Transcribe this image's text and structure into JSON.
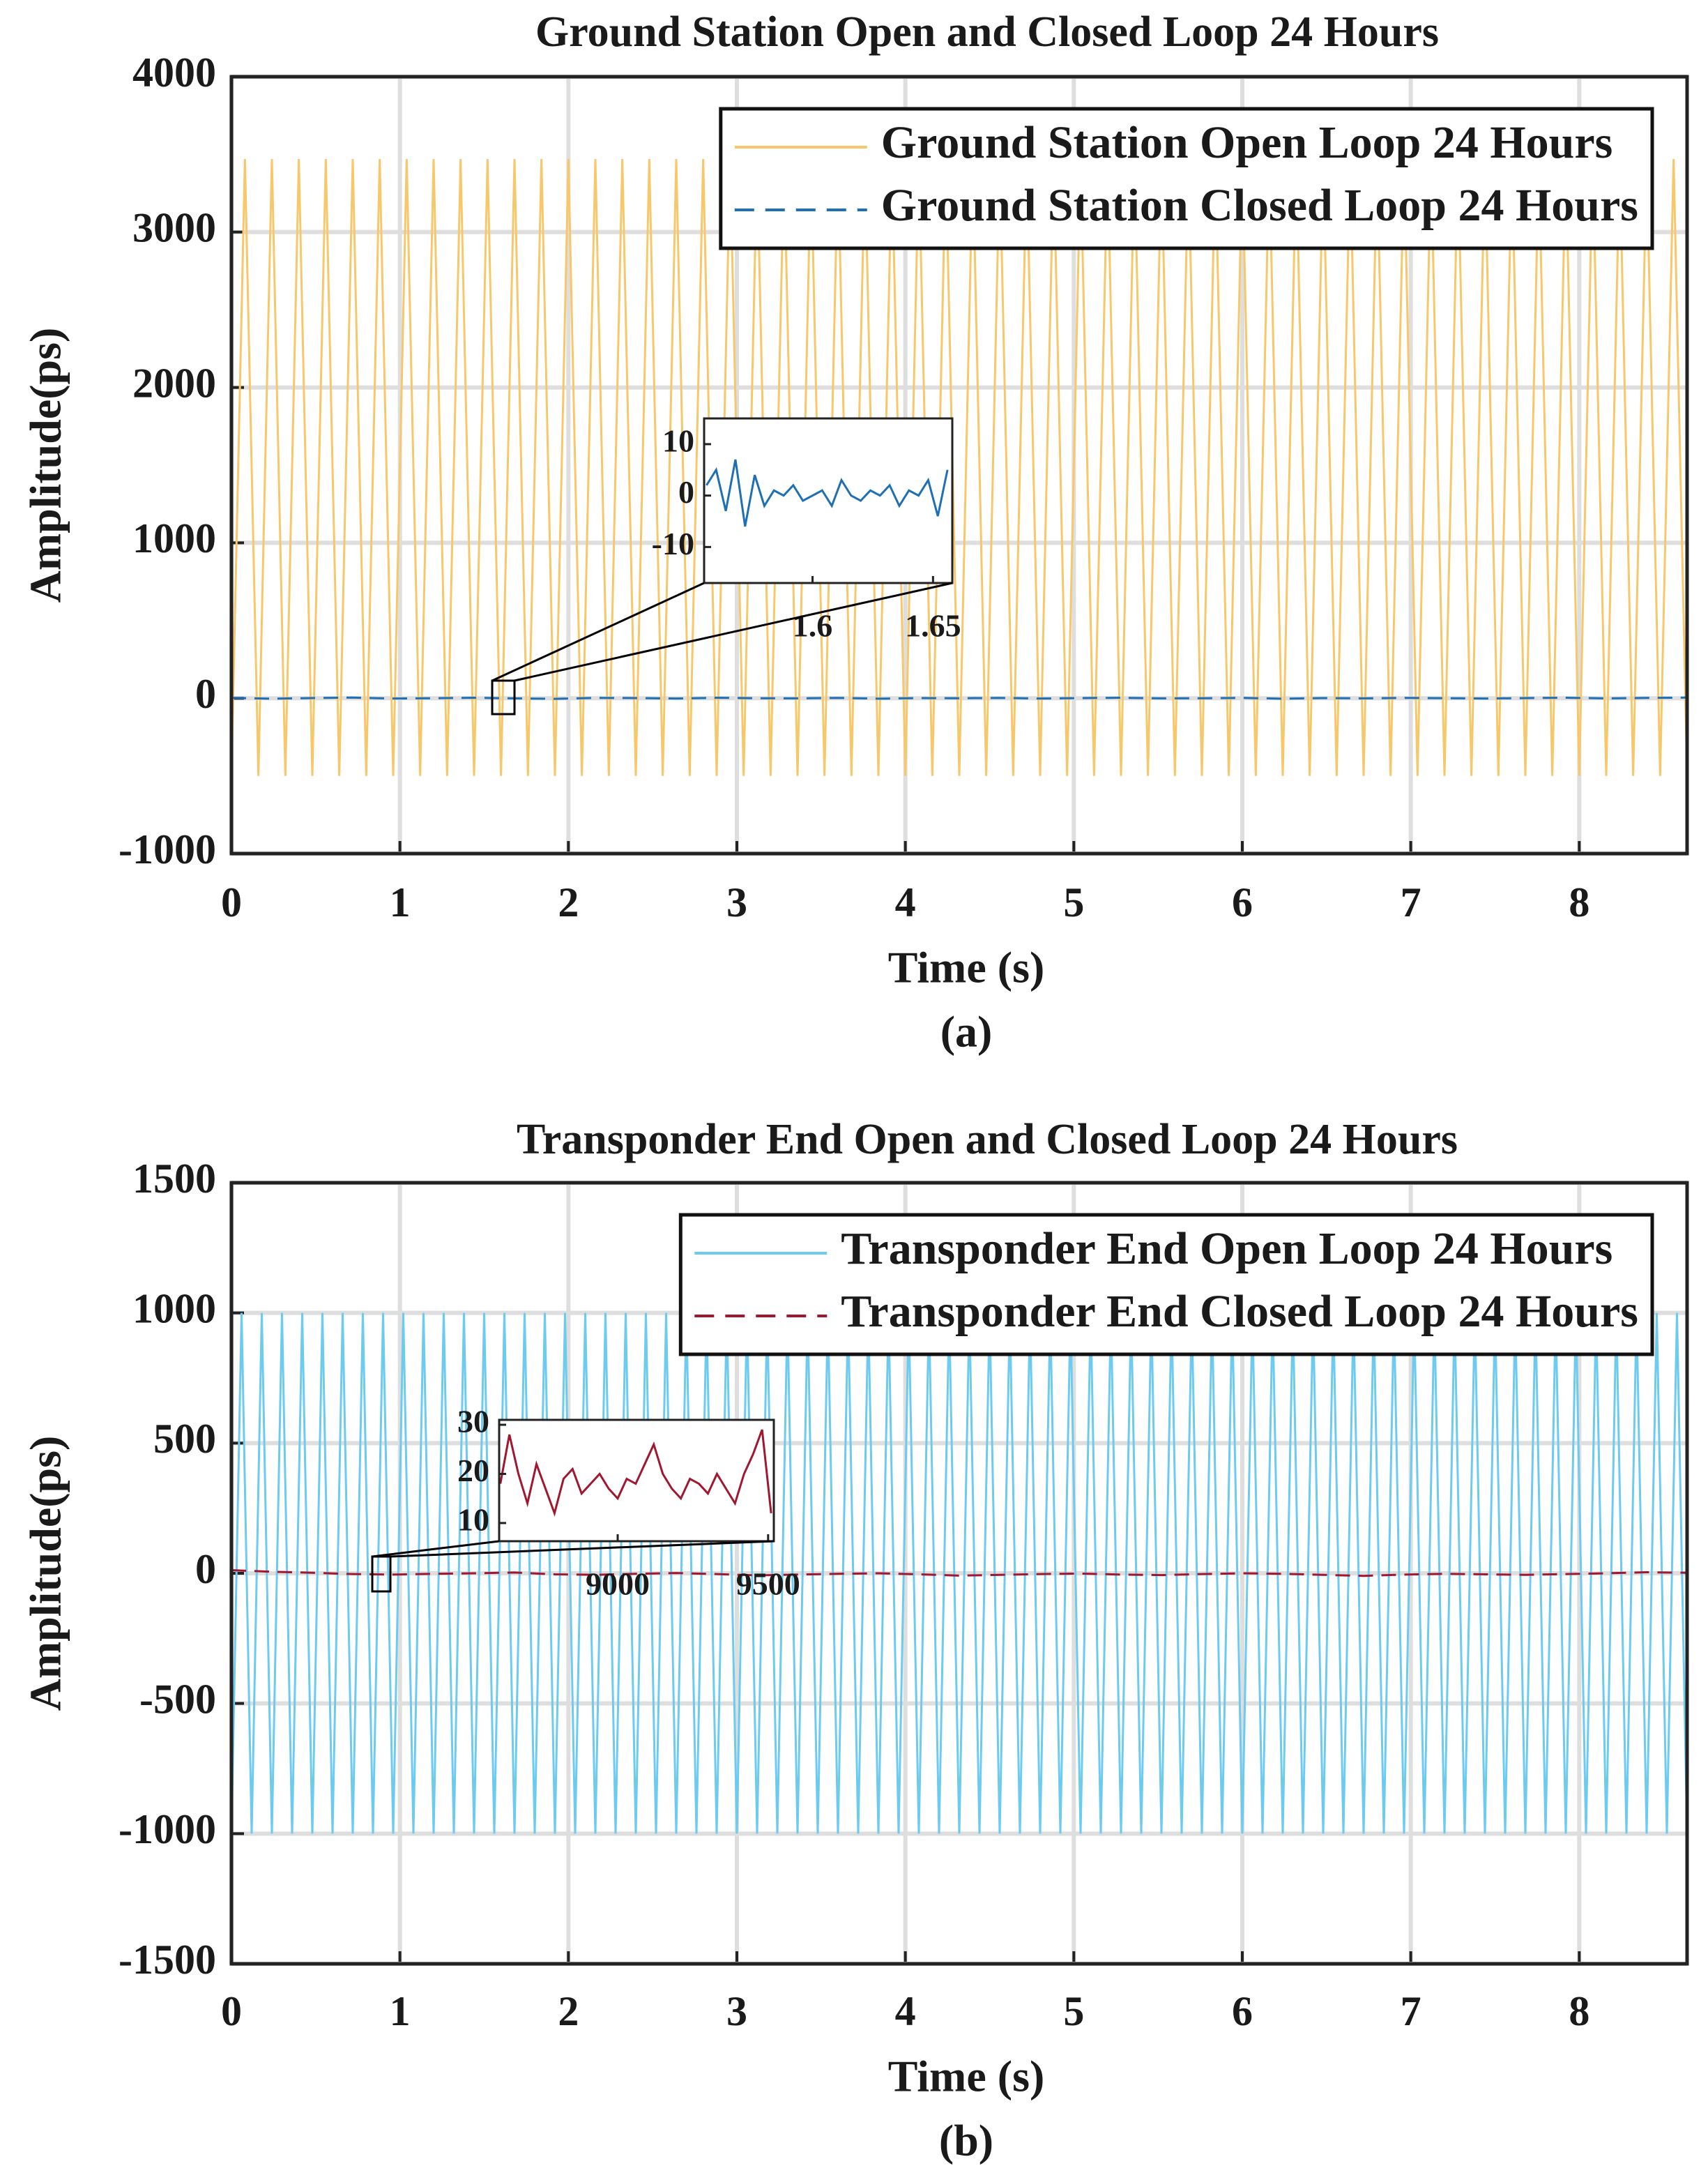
{
  "chart_data": [
    {
      "type": "line",
      "title": "Ground Station Open and Closed Loop 24 Hours",
      "x_label": "Time (s)",
      "y_label": "Amplitude(ps)",
      "caption": "(a)",
      "xlim": [
        0,
        8.64
      ],
      "ylim": [
        -1000,
        4000
      ],
      "xticks": [
        0,
        1,
        2,
        3,
        4,
        5,
        6,
        7,
        8
      ],
      "yticks": [
        -1000,
        0,
        1000,
        2000,
        3000,
        4000
      ],
      "grid": true,
      "legend": "upper right",
      "series": [
        {
          "name": "Ground Station Open Loop 24 Hours",
          "color": "#f7c86b",
          "style": "solid",
          "x": [
            0,
            0.08,
            0.16,
            0.24,
            0.32,
            0.4,
            0.48,
            0.56,
            0.64,
            0.72,
            0.8,
            0.88,
            0.96,
            1.04,
            1.12,
            1.2,
            1.28,
            1.36,
            1.44,
            1.52,
            1.6,
            1.68,
            1.76,
            1.84,
            1.92,
            2,
            2.08,
            2.16,
            2.24,
            2.32,
            2.4,
            2.48,
            2.56,
            2.64,
            2.72,
            2.8,
            2.88,
            2.96,
            3.04,
            3.12,
            3.2,
            3.28,
            3.36,
            3.44,
            3.52,
            3.6,
            3.68,
            3.76,
            3.84,
            3.92,
            4,
            4.08,
            4.16,
            4.24,
            4.32,
            4.4,
            4.48,
            4.56,
            4.64,
            4.72,
            4.8,
            4.88,
            4.96,
            5.04,
            5.12,
            5.2,
            5.28,
            5.36,
            5.44,
            5.52,
            5.6,
            5.68,
            5.76,
            5.84,
            5.92,
            6,
            6.08,
            6.16,
            6.24,
            6.32,
            6.4,
            6.48,
            6.56,
            6.64,
            6.72,
            6.8,
            6.88,
            6.96,
            7.04,
            7.12,
            7.2,
            7.28,
            7.36,
            7.44,
            7.52,
            7.6,
            7.68,
            7.76,
            7.84,
            7.92,
            8,
            8.08,
            8.16,
            8.24,
            8.32,
            8.4,
            8.48,
            8.56,
            8.64
          ],
          "values": [
            -500,
            3470,
            -500,
            3470,
            -500,
            3470,
            -500,
            3470,
            -500,
            3470,
            -500,
            3470,
            -500,
            3470,
            -500,
            3470,
            -500,
            3470,
            -500,
            3470,
            -500,
            3470,
            -500,
            3470,
            -500,
            3470,
            -500,
            3470,
            -500,
            3470,
            -500,
            3470,
            -500,
            3470,
            -500,
            3470,
            -500,
            3470,
            -500,
            3470,
            -500,
            3470,
            -500,
            3470,
            -500,
            3470,
            -500,
            3470,
            -500,
            3470,
            -500,
            3470,
            -500,
            3470,
            -500,
            3470,
            -500,
            3470,
            -500,
            3470,
            -500,
            3470,
            -500,
            3470,
            -500,
            3470,
            -500,
            3470,
            -500,
            3470,
            -500,
            3470,
            -500,
            3470,
            -500,
            3470,
            -500,
            3470,
            -500,
            3470,
            -500,
            3470,
            -500,
            3470,
            -500,
            3470,
            -500,
            3470,
            -500,
            3470,
            -500,
            3470,
            -500,
            3470,
            -500,
            3470,
            -500,
            3470,
            -500,
            3470,
            -500,
            3470,
            -500,
            3470,
            -500,
            3470,
            -500,
            3470,
            -500
          ]
        },
        {
          "name": "Ground Station Closed Loop 24 Hours",
          "color": "#1f6fb5",
          "style": "dashed",
          "x": [
            0,
            0.24,
            0.48,
            0.72,
            0.96,
            1.2,
            1.44,
            1.68,
            1.92,
            2.16,
            2.4,
            2.64,
            2.88,
            3.12,
            3.36,
            3.6,
            3.84,
            4.08,
            4.32,
            4.56,
            4.8,
            5.04,
            5.28,
            5.52,
            5.76,
            6,
            6.24,
            6.48,
            6.72,
            6.96,
            7.2,
            7.44,
            7.68,
            7.92,
            8.16,
            8.4,
            8.64
          ],
          "values": [
            2,
            -3,
            1,
            4,
            -2,
            0,
            3,
            -1,
            -4,
            2,
            1,
            -2,
            3,
            0,
            -1,
            2,
            -3,
            1,
            0,
            2,
            -2,
            1,
            3,
            -1,
            0,
            2,
            -3,
            1,
            -1,
            2,
            0,
            -2,
            1,
            3,
            -1,
            2,
            4
          ]
        }
      ],
      "inset": {
        "xlim": [
          1.555,
          1.658
        ],
        "ylim": [
          -17,
          15
        ],
        "xticks": [
          1.6,
          1.65
        ],
        "yticks": [
          -10,
          0,
          10
        ],
        "series": [
          {
            "color": "#1f6fb5",
            "x": [
              1.556,
              1.56,
              1.564,
              1.568,
              1.572,
              1.576,
              1.58,
              1.584,
              1.588,
              1.592,
              1.596,
              1.6,
              1.604,
              1.608,
              1.612,
              1.616,
              1.62,
              1.624,
              1.628,
              1.632,
              1.636,
              1.64,
              1.644,
              1.648,
              1.652,
              1.656
            ],
            "values": [
              2,
              5,
              -3,
              7,
              -6,
              4,
              -2,
              1,
              0,
              2,
              -1,
              0,
              1,
              -2,
              3,
              0,
              -1,
              1,
              0,
              2,
              -2,
              1,
              0,
              3,
              -4,
              5
            ]
          }
        ]
      }
    },
    {
      "type": "line",
      "title": "Transponder End Open and Closed Loop 24 Hours",
      "x_label": "Time (s)",
      "y_label": "Amplitude(ps)",
      "caption": "(b)",
      "xlim": [
        0,
        8.64
      ],
      "ylim": [
        -1500,
        1500
      ],
      "xticks": [
        0,
        1,
        2,
        3,
        4,
        5,
        6,
        7,
        8
      ],
      "yticks": [
        -1500,
        -1000,
        -500,
        0,
        500,
        1000,
        1500
      ],
      "grid": true,
      "legend": "upper right",
      "series": [
        {
          "name": "Transponder End Open Loop 24 Hours",
          "color": "#6ccbef",
          "style": "solid",
          "x": [
            0,
            0.06,
            0.12,
            0.18,
            0.24,
            0.3,
            0.36,
            0.42,
            0.48,
            0.54,
            0.6,
            0.66,
            0.72,
            0.78,
            0.84,
            0.9,
            0.96,
            1.02,
            1.08,
            1.14,
            1.2,
            1.26,
            1.32,
            1.38,
            1.44,
            1.5,
            1.56,
            1.62,
            1.68,
            1.74,
            1.8,
            1.86,
            1.92,
            1.98,
            2.04,
            2.1,
            2.16,
            2.22,
            2.28,
            2.34,
            2.4,
            2.46,
            2.52,
            2.58,
            2.64,
            2.7,
            2.76,
            2.82,
            2.88,
            2.94,
            3,
            3.06,
            3.12,
            3.18,
            3.24,
            3.3,
            3.36,
            3.42,
            3.48,
            3.54,
            3.6,
            3.66,
            3.72,
            3.78,
            3.84,
            3.9,
            3.96,
            4.02,
            4.08,
            4.14,
            4.2,
            4.26,
            4.32,
            4.38,
            4.44,
            4.5,
            4.56,
            4.62,
            4.68,
            4.74,
            4.8,
            4.86,
            4.92,
            4.98,
            5.04,
            5.1,
            5.16,
            5.22,
            5.28,
            5.34,
            5.4,
            5.46,
            5.52,
            5.58,
            5.64,
            5.7,
            5.76,
            5.82,
            5.88,
            5.94,
            6,
            6.06,
            6.12,
            6.18,
            6.24,
            6.3,
            6.36,
            6.42,
            6.48,
            6.54,
            6.6,
            6.66,
            6.72,
            6.78,
            6.84,
            6.9,
            6.96,
            7.02,
            7.08,
            7.14,
            7.2,
            7.26,
            7.32,
            7.38,
            7.44,
            7.5,
            7.56,
            7.62,
            7.68,
            7.74,
            7.8,
            7.86,
            7.92,
            7.98,
            8.04,
            8.1,
            8.16,
            8.22,
            8.28,
            8.34,
            8.4,
            8.46,
            8.52,
            8.58,
            8.64
          ],
          "values": [
            -1000,
            1000,
            -1000,
            1000,
            -1000,
            1000,
            -1000,
            1000,
            -1000,
            1000,
            -1000,
            1000,
            -1000,
            1000,
            -1000,
            1000,
            -1000,
            1000,
            -1000,
            1000,
            -1000,
            1000,
            -1000,
            1000,
            -1000,
            1000,
            -1000,
            1000,
            -1000,
            1000,
            -1000,
            1000,
            -1000,
            1000,
            -1000,
            1000,
            -1000,
            1000,
            -1000,
            1000,
            -1000,
            1000,
            -1000,
            1000,
            -1000,
            1000,
            -1000,
            1000,
            -1000,
            1000,
            -1000,
            1000,
            -1000,
            1000,
            -1000,
            1000,
            -1000,
            1000,
            -1000,
            1000,
            -1000,
            1000,
            -1000,
            1000,
            -1000,
            1000,
            -1000,
            1000,
            -1000,
            1000,
            -1000,
            1000,
            -1000,
            1000,
            -1000,
            1000,
            -1000,
            1000,
            -1000,
            1000,
            -1000,
            1000,
            -1000,
            1000,
            -1000,
            1000,
            -1000,
            1000,
            -1000,
            1000,
            -1000,
            1000,
            -1000,
            1000,
            -1000,
            1000,
            -1000,
            1000,
            -1000,
            1000,
            -1000,
            1000,
            -1000,
            1000,
            -1000,
            1000,
            -1000,
            1000,
            -1000,
            1000,
            -1000,
            1000,
            -1000,
            1000,
            -1000,
            1000,
            -1000,
            1000,
            -1000,
            1000,
            -1000,
            1000,
            -1000,
            1000,
            -1000,
            1000,
            -1000,
            1000,
            -1000,
            1000,
            -1000,
            1000,
            -1000,
            1000,
            -1000,
            1000,
            -1000,
            1000,
            -1000,
            1000,
            -1000,
            1000,
            -1000,
            1000,
            -1000
          ]
        },
        {
          "name": "Transponder End Closed Loop 24 Hours",
          "color": "#a0172f",
          "style": "dashed",
          "x": [
            0,
            0.24,
            0.48,
            0.72,
            0.96,
            1.2,
            1.44,
            1.68,
            1.92,
            2.16,
            2.4,
            2.64,
            2.88,
            3.12,
            3.36,
            3.6,
            3.84,
            4.08,
            4.32,
            4.56,
            4.8,
            5.04,
            5.28,
            5.52,
            5.76,
            6,
            6.24,
            6.48,
            6.72,
            6.96,
            7.2,
            7.44,
            7.68,
            7.92,
            8.16,
            8.4,
            8.64
          ],
          "values": [
            12,
            6,
            2,
            -3,
            -5,
            -2,
            0,
            3,
            -4,
            -6,
            -2,
            1,
            -3,
            -8,
            -5,
            -2,
            0,
            -4,
            -9,
            -6,
            -3,
            -1,
            -5,
            -7,
            -3,
            0,
            -2,
            -6,
            -10,
            -5,
            -2,
            -4,
            -6,
            -3,
            0,
            4,
            2
          ]
        }
      ],
      "inset": {
        "xlim": [
          8606,
          9519
        ],
        "ylim": [
          6.3,
          31
        ],
        "xticks": [
          9000,
          9500
        ],
        "yticks": [
          10,
          20,
          30
        ],
        "series": [
          {
            "color": "#a0172f",
            "x": [
              8610,
              8640,
              8670,
              8700,
              8730,
              8760,
              8790,
              8820,
              8850,
              8880,
              8910,
              8940,
              8970,
              9000,
              9030,
              9060,
              9090,
              9120,
              9150,
              9180,
              9210,
              9240,
              9270,
              9300,
              9330,
              9360,
              9390,
              9420,
              9450,
              9480,
              9510
            ],
            "values": [
              18,
              28,
              20,
              14,
              22,
              17,
              12,
              19,
              21,
              16,
              18,
              20,
              17,
              15,
              19,
              18,
              22,
              26,
              20,
              17,
              15,
              19,
              18,
              16,
              20,
              17,
              14,
              20,
              24,
              29,
              12
            ]
          }
        ]
      }
    }
  ]
}
